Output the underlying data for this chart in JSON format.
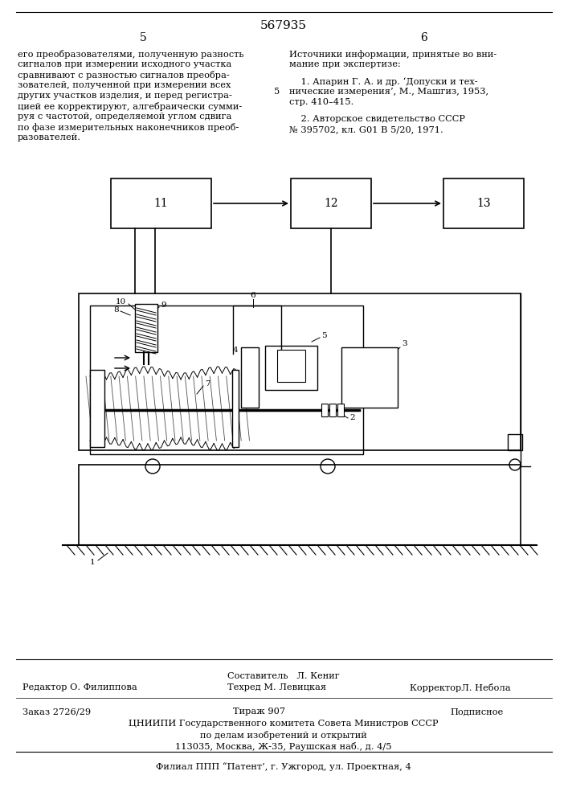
{
  "patent_number": "567935",
  "page_left": "5",
  "page_right": "6",
  "left_col_lines": [
    "его преобразователями, полученную разность",
    "сигналов при измерении исходного участка",
    "сравнивают с разностью сигналов преобра-",
    "зователей, полученной при измерении всех",
    "других участков изделия, и перед регистра-",
    "цией ее корректируют, алгебраически сумми-",
    "руя с частотой, определяемой углом сдвига",
    "по фазе измерительных наконечников преоб-",
    "разователей."
  ],
  "right_col_lines": [
    "Источники информации, принятые во вни-",
    "мание при экспертизе:"
  ],
  "ref1": [
    "    1. Апарин Г. А. и др. ‘Допуски и тех-",
    "нические измерения’, М., Машгиз, 1953,",
    "стр. 410–415."
  ],
  "ref2": [
    "    2. Авторское свидетельство СССР",
    "№ 395702, кл. G01 B 5/20, 1971."
  ],
  "footer_composer": "Составитель   Л. Кениг",
  "footer_editor": "Редактор О. Филиппова",
  "footer_techred": "Техред М. Левицкая",
  "footer_corrector": "КорректорЛ. Небола",
  "footer_order": "Заказ 2726/29",
  "footer_tirazh": "Тираж 907",
  "footer_podpisnoe": "Подписное",
  "footer_cniipи": "ЦНИИПИ Государственного комитета Совета Министров СССР",
  "footer_dela": "по делам изобретений и открытий",
  "footer_addr": "113035, Москва, Ж-35, Раушская наб., д. 4/5",
  "footer_filial": "Филиал ППП “Патент’, г. Ужгород, ул. Проектная, 4",
  "bg_color": "#ffffff"
}
